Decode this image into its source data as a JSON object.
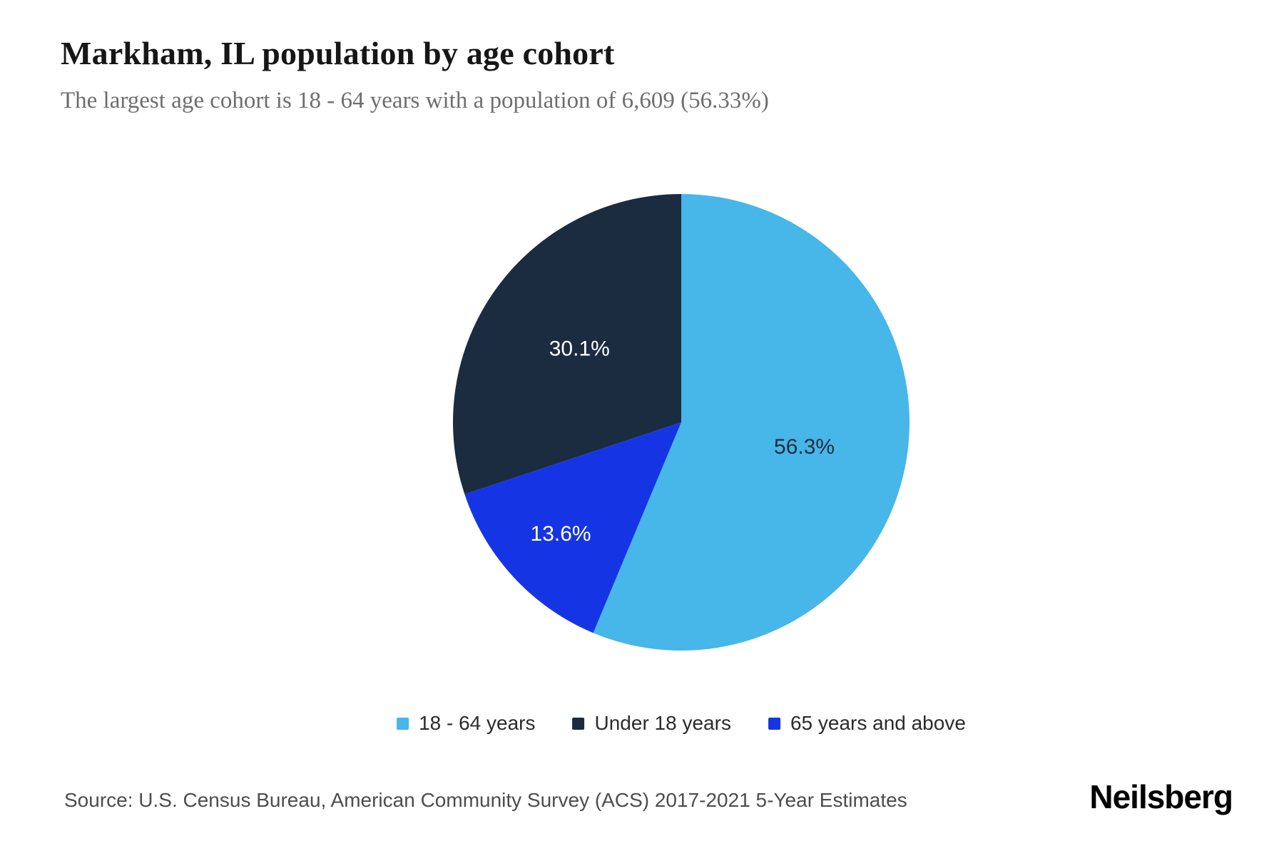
{
  "header": {
    "title": "Markham, IL population by age cohort",
    "subtitle": "The largest age cohort is 18 - 64 years with a population of 6,609 (56.33%)"
  },
  "chart_data": {
    "type": "pie",
    "title": "Markham, IL population by age cohort",
    "subtitle": "The largest age cohort is 18 - 64 years with a population of 6,609 (56.33%)",
    "unit": "percent",
    "start_angle_deg": 0,
    "direction": "clockwise",
    "slices": [
      {
        "name": "18-64-years",
        "label": "18 - 64 years",
        "value": 56.3,
        "display": "56.3%",
        "color": "#47B6E9",
        "label_color": "#1E2D3E"
      },
      {
        "name": "65-years-and-above",
        "label": "65 years and above",
        "value": 13.6,
        "display": "13.6%",
        "color": "#1535E4",
        "label_color": "#FFFFFF"
      },
      {
        "name": "under-18-years",
        "label": "Under 18 years",
        "value": 30.1,
        "display": "30.1%",
        "color": "#1B2B40",
        "label_color": "#FFFFFF"
      }
    ],
    "legend": {
      "position": "bottom",
      "items": [
        {
          "label": "18 - 64 years",
          "color": "#47B6E9"
        },
        {
          "label": "Under 18 years",
          "color": "#1B2B40"
        },
        {
          "label": "65 years and above",
          "color": "#1535E4"
        }
      ]
    }
  },
  "footer": {
    "source": "Source: U.S. Census Bureau, American Community Survey (ACS) 2017-2021 5-Year Estimates",
    "brand": "Neilsberg"
  }
}
